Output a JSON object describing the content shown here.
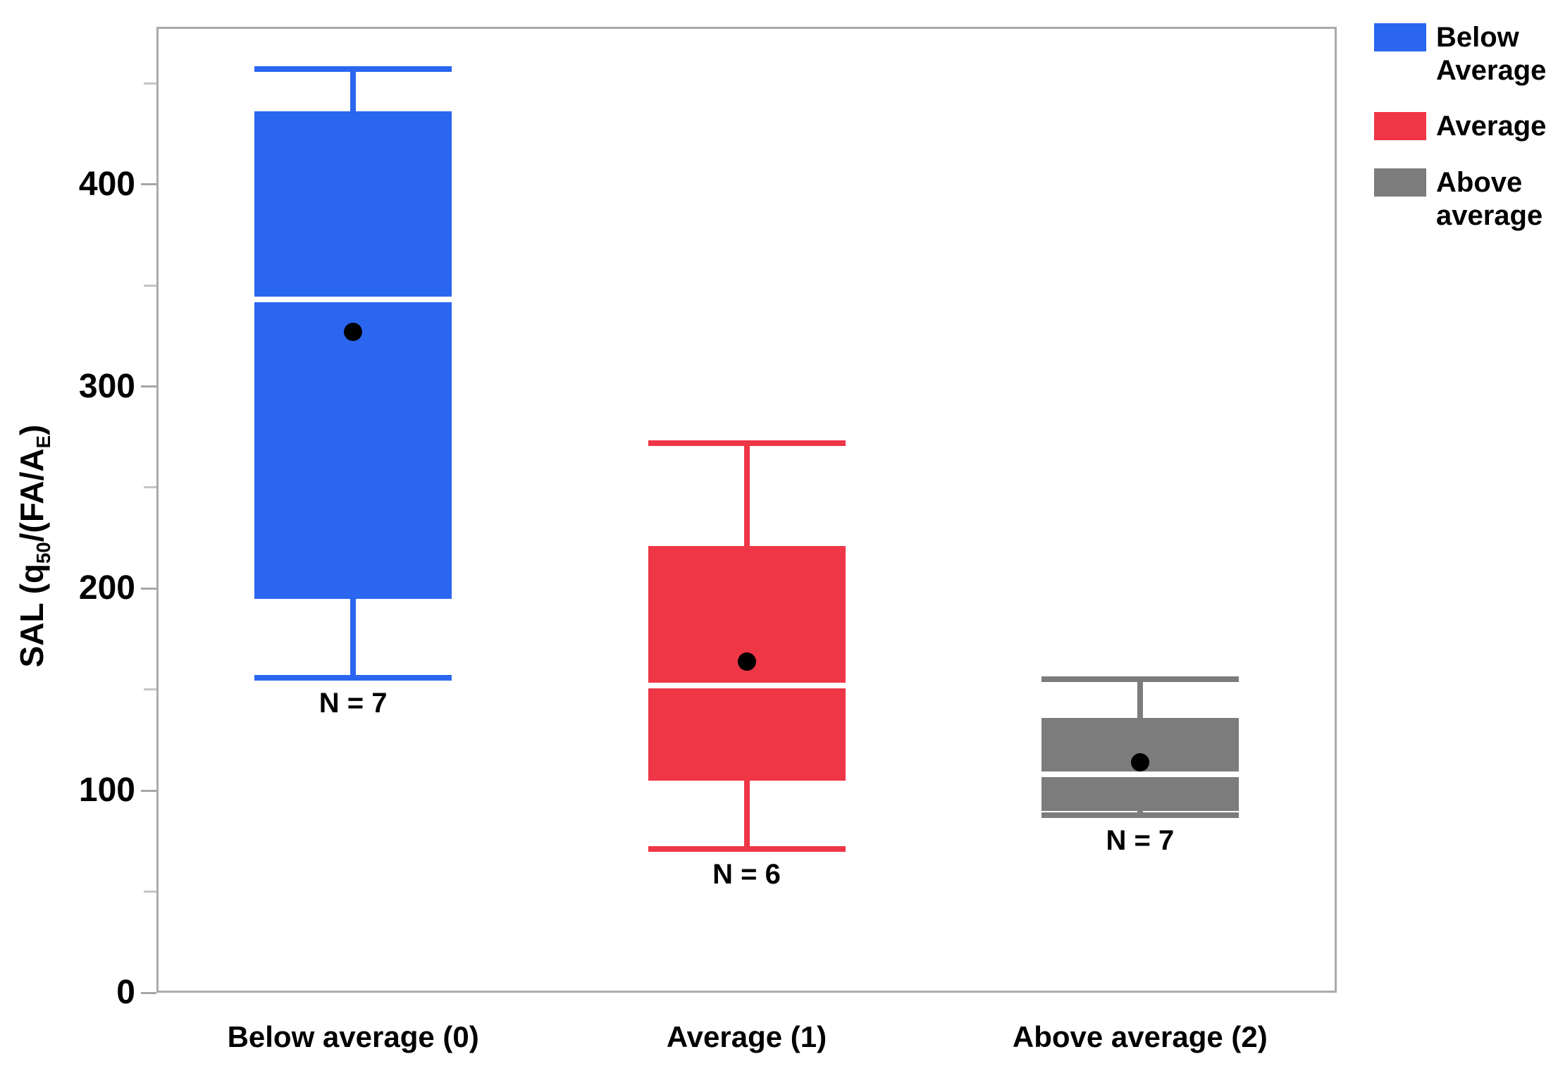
{
  "figure": {
    "background": "#ffffff",
    "frame_color": "#ABABAB",
    "minor_tick_color": "#C6C6C6",
    "text_color": "#000000"
  },
  "chart_data": {
    "type": "boxplot",
    "title": "",
    "xlabel": "",
    "ylabel": "SAL (q50/(FA/AE)",
    "ylabel_parts": [
      {
        "text": "SAL (q",
        "sub": false
      },
      {
        "text": "50",
        "sub": true
      },
      {
        "text": "/(FA/A",
        "sub": false
      },
      {
        "text": "E",
        "sub": true
      },
      {
        "text": ")",
        "sub": false
      }
    ],
    "categories": [
      "Below average (0)",
      "Average (1)",
      "Above average (2)"
    ],
    "ylim": [
      0,
      478
    ],
    "yticks": [
      0,
      100,
      200,
      300,
      400
    ],
    "yticks_minor": [
      50,
      150,
      250,
      350,
      450
    ],
    "grid": false,
    "legend_position": "top-right",
    "median_line_color": "#ffffff",
    "mean_marker_color": "#000000",
    "boxes": [
      {
        "category": "Below average (0)",
        "legend_label": "Below Average",
        "color": "#2A66F0",
        "n_label": "N = 7",
        "n": 7,
        "min": 156,
        "q1": 195,
        "median": 343,
        "q3": 436,
        "max": 457,
        "mean": 327
      },
      {
        "category": "Average (1)",
        "legend_label": "Average",
        "color": "#EE3647",
        "n_label": "N = 6",
        "n": 6,
        "min": 71,
        "q1": 105,
        "median": 152,
        "q3": 221,
        "max": 272,
        "mean": 164
      },
      {
        "category": "Above average (2)",
        "legend_label": "Above average",
        "color": "#7C7C7C",
        "n_label": "N = 7",
        "n": 7,
        "min": 88,
        "q1": 90,
        "median": 108,
        "q3": 136,
        "max": 155,
        "mean": 114
      }
    ],
    "legend": [
      {
        "label": "Below Average",
        "color": "#2A66F0"
      },
      {
        "label": "Average",
        "color": "#EE3647"
      },
      {
        "label": "Above average",
        "color": "#7C7C7C"
      }
    ]
  }
}
